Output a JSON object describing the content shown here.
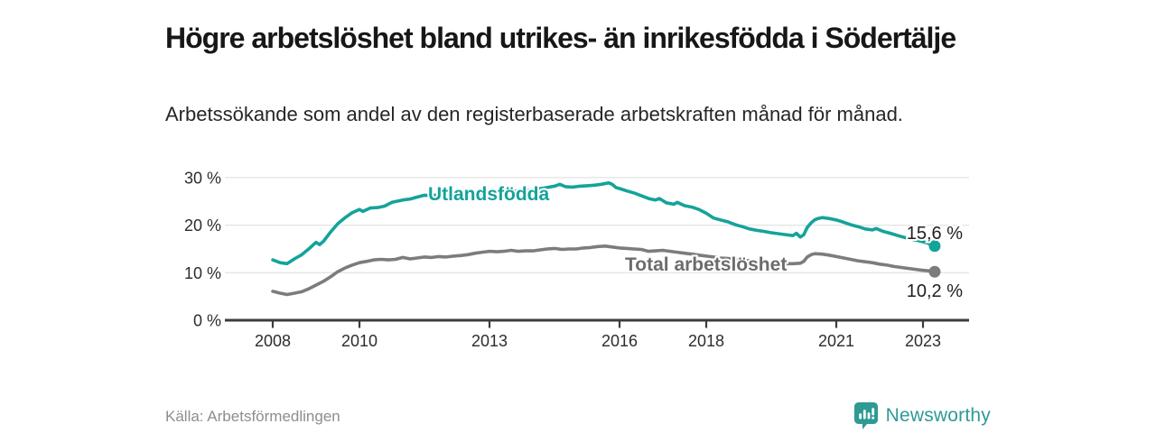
{
  "header": {
    "title": "Högre arbetslöshet bland utrikes- än inrikesfödda i Södertälje",
    "subtitle": "Arbetssökande som andel av den registerbaserade arbetskraften månad för månad."
  },
  "chart_data": {
    "type": "line",
    "title": "Högre arbetslöshet bland utrikes- än inrikesfödda i Södertälje",
    "xlabel": "",
    "ylabel": "Arbetssökande som andel av den registerbaserade arbetskraften (%)",
    "grid": "horizontal",
    "legend_position": "inline-labels",
    "x_axis": {
      "ticks": [
        2008,
        2010,
        2013,
        2016,
        2018,
        2021,
        2023
      ],
      "min": 2007.8,
      "max": 2023.6
    },
    "y_axis": {
      "tick_values": [
        0,
        10,
        20,
        30
      ],
      "tick_labels": [
        "0 %",
        "10 %",
        "20 %",
        "30 %"
      ],
      "min": 0,
      "max": 32
    },
    "series": [
      {
        "name": "Utlandsfödda",
        "color": "#14A39A",
        "label_color": "#14A39A",
        "end_label": "15,6 %",
        "end_value": 15.6,
        "points": [
          [
            2008.0,
            12.7
          ],
          [
            2008.17,
            12.1
          ],
          [
            2008.33,
            11.9
          ],
          [
            2008.5,
            12.9
          ],
          [
            2008.67,
            13.8
          ],
          [
            2008.83,
            15.0
          ],
          [
            2009.0,
            16.4
          ],
          [
            2009.08,
            15.9
          ],
          [
            2009.17,
            16.6
          ],
          [
            2009.33,
            18.5
          ],
          [
            2009.5,
            20.3
          ],
          [
            2009.67,
            21.6
          ],
          [
            2009.83,
            22.6
          ],
          [
            2010.0,
            23.3
          ],
          [
            2010.08,
            22.9
          ],
          [
            2010.25,
            23.6
          ],
          [
            2010.42,
            23.7
          ],
          [
            2010.58,
            24.0
          ],
          [
            2010.75,
            24.8
          ],
          [
            2011.0,
            25.3
          ],
          [
            2011.17,
            25.5
          ],
          [
            2011.33,
            25.9
          ],
          [
            2011.5,
            26.3
          ],
          [
            2011.67,
            26.2
          ],
          [
            2011.83,
            26.4
          ],
          [
            2012.0,
            26.5
          ],
          [
            2012.25,
            26.6
          ],
          [
            2012.5,
            26.8
          ],
          [
            2012.75,
            26.7
          ],
          [
            2013.0,
            27.0
          ],
          [
            2013.25,
            27.1
          ],
          [
            2013.5,
            27.2
          ],
          [
            2013.75,
            27.1
          ],
          [
            2014.0,
            27.5
          ],
          [
            2014.25,
            27.8
          ],
          [
            2014.5,
            28.2
          ],
          [
            2014.62,
            28.6
          ],
          [
            2014.75,
            28.1
          ],
          [
            2014.92,
            28.0
          ],
          [
            2015.08,
            28.2
          ],
          [
            2015.25,
            28.3
          ],
          [
            2015.42,
            28.4
          ],
          [
            2015.58,
            28.6
          ],
          [
            2015.75,
            28.9
          ],
          [
            2015.83,
            28.6
          ],
          [
            2015.92,
            27.9
          ],
          [
            2016.0,
            27.7
          ],
          [
            2016.17,
            27.2
          ],
          [
            2016.33,
            26.8
          ],
          [
            2016.5,
            26.2
          ],
          [
            2016.67,
            25.6
          ],
          [
            2016.83,
            25.3
          ],
          [
            2016.92,
            25.6
          ],
          [
            2017.08,
            24.7
          ],
          [
            2017.25,
            24.4
          ],
          [
            2017.33,
            24.8
          ],
          [
            2017.5,
            24.1
          ],
          [
            2017.67,
            23.8
          ],
          [
            2017.83,
            23.3
          ],
          [
            2018.0,
            22.5
          ],
          [
            2018.17,
            21.5
          ],
          [
            2018.33,
            21.1
          ],
          [
            2018.5,
            20.7
          ],
          [
            2018.67,
            20.1
          ],
          [
            2018.83,
            19.7
          ],
          [
            2019.0,
            19.2
          ],
          [
            2019.17,
            18.9
          ],
          [
            2019.33,
            18.7
          ],
          [
            2019.5,
            18.4
          ],
          [
            2019.67,
            18.2
          ],
          [
            2019.83,
            18.0
          ],
          [
            2020.0,
            17.8
          ],
          [
            2020.08,
            18.3
          ],
          [
            2020.17,
            17.5
          ],
          [
            2020.25,
            18.0
          ],
          [
            2020.33,
            19.5
          ],
          [
            2020.42,
            20.5
          ],
          [
            2020.5,
            21.1
          ],
          [
            2020.58,
            21.4
          ],
          [
            2020.67,
            21.6
          ],
          [
            2020.83,
            21.4
          ],
          [
            2021.0,
            21.1
          ],
          [
            2021.17,
            20.6
          ],
          [
            2021.33,
            20.1
          ],
          [
            2021.5,
            19.7
          ],
          [
            2021.67,
            19.2
          ],
          [
            2021.83,
            19.0
          ],
          [
            2021.92,
            19.3
          ],
          [
            2022.08,
            18.7
          ],
          [
            2022.25,
            18.3
          ],
          [
            2022.42,
            17.8
          ],
          [
            2022.58,
            17.4
          ],
          [
            2022.75,
            17.0
          ],
          [
            2022.92,
            16.7
          ],
          [
            2023.08,
            16.3
          ],
          [
            2023.17,
            16.0
          ],
          [
            2023.27,
            15.6
          ]
        ]
      },
      {
        "name": "Total arbetslöshet",
        "color": "#7C7C7C",
        "label_color": "#6C6C6C",
        "end_label": "10,2 %",
        "end_value": 10.2,
        "points": [
          [
            2008.0,
            6.1
          ],
          [
            2008.17,
            5.7
          ],
          [
            2008.33,
            5.4
          ],
          [
            2008.5,
            5.7
          ],
          [
            2008.67,
            6.0
          ],
          [
            2008.83,
            6.6
          ],
          [
            2009.0,
            7.4
          ],
          [
            2009.17,
            8.2
          ],
          [
            2009.33,
            9.1
          ],
          [
            2009.5,
            10.2
          ],
          [
            2009.67,
            11.0
          ],
          [
            2009.83,
            11.6
          ],
          [
            2010.0,
            12.1
          ],
          [
            2010.17,
            12.4
          ],
          [
            2010.33,
            12.7
          ],
          [
            2010.5,
            12.8
          ],
          [
            2010.67,
            12.7
          ],
          [
            2010.83,
            12.8
          ],
          [
            2011.0,
            13.2
          ],
          [
            2011.17,
            12.9
          ],
          [
            2011.33,
            13.1
          ],
          [
            2011.5,
            13.3
          ],
          [
            2011.67,
            13.2
          ],
          [
            2011.83,
            13.4
          ],
          [
            2012.0,
            13.3
          ],
          [
            2012.17,
            13.5
          ],
          [
            2012.33,
            13.6
          ],
          [
            2012.5,
            13.8
          ],
          [
            2012.67,
            14.1
          ],
          [
            2012.83,
            14.3
          ],
          [
            2013.0,
            14.5
          ],
          [
            2013.17,
            14.4
          ],
          [
            2013.33,
            14.5
          ],
          [
            2013.5,
            14.7
          ],
          [
            2013.67,
            14.5
          ],
          [
            2013.83,
            14.6
          ],
          [
            2014.0,
            14.6
          ],
          [
            2014.17,
            14.8
          ],
          [
            2014.33,
            15.0
          ],
          [
            2014.5,
            15.1
          ],
          [
            2014.67,
            14.9
          ],
          [
            2014.83,
            15.0
          ],
          [
            2015.0,
            15.0
          ],
          [
            2015.17,
            15.2
          ],
          [
            2015.33,
            15.3
          ],
          [
            2015.5,
            15.5
          ],
          [
            2015.67,
            15.6
          ],
          [
            2015.83,
            15.4
          ],
          [
            2016.0,
            15.2
          ],
          [
            2016.17,
            15.1
          ],
          [
            2016.33,
            15.0
          ],
          [
            2016.5,
            14.9
          ],
          [
            2016.67,
            14.5
          ],
          [
            2016.83,
            14.6
          ],
          [
            2017.0,
            14.7
          ],
          [
            2017.17,
            14.5
          ],
          [
            2017.33,
            14.3
          ],
          [
            2017.5,
            14.1
          ],
          [
            2017.67,
            13.9
          ],
          [
            2017.83,
            13.7
          ],
          [
            2018.0,
            13.5
          ],
          [
            2018.17,
            13.3
          ],
          [
            2018.33,
            13.1
          ],
          [
            2018.5,
            13.0
          ],
          [
            2018.67,
            12.8
          ],
          [
            2018.83,
            12.6
          ],
          [
            2019.0,
            12.5
          ],
          [
            2019.17,
            12.4
          ],
          [
            2019.33,
            12.2
          ],
          [
            2019.5,
            12.1
          ],
          [
            2019.67,
            12.0
          ],
          [
            2019.83,
            11.9
          ],
          [
            2020.0,
            11.9
          ],
          [
            2020.17,
            12.0
          ],
          [
            2020.25,
            12.4
          ],
          [
            2020.33,
            13.3
          ],
          [
            2020.42,
            13.8
          ],
          [
            2020.5,
            14.0
          ],
          [
            2020.67,
            13.9
          ],
          [
            2020.83,
            13.7
          ],
          [
            2021.0,
            13.4
          ],
          [
            2021.17,
            13.1
          ],
          [
            2021.33,
            12.8
          ],
          [
            2021.5,
            12.5
          ],
          [
            2021.67,
            12.3
          ],
          [
            2021.83,
            12.1
          ],
          [
            2022.0,
            11.8
          ],
          [
            2022.17,
            11.6
          ],
          [
            2022.33,
            11.3
          ],
          [
            2022.5,
            11.1
          ],
          [
            2022.67,
            10.9
          ],
          [
            2022.83,
            10.7
          ],
          [
            2023.0,
            10.5
          ],
          [
            2023.13,
            10.4
          ],
          [
            2023.27,
            10.2
          ]
        ]
      }
    ]
  },
  "footer": {
    "source": "Källa: Arbetsförmedlingen",
    "brand": "Newsworthy"
  },
  "colors": {
    "accent_teal": "#14A39A",
    "line_gray": "#7C7C7C",
    "axis": "#3C3C3C",
    "gridline": "#E4E4E4",
    "brand_teal": "#2e9a94"
  }
}
